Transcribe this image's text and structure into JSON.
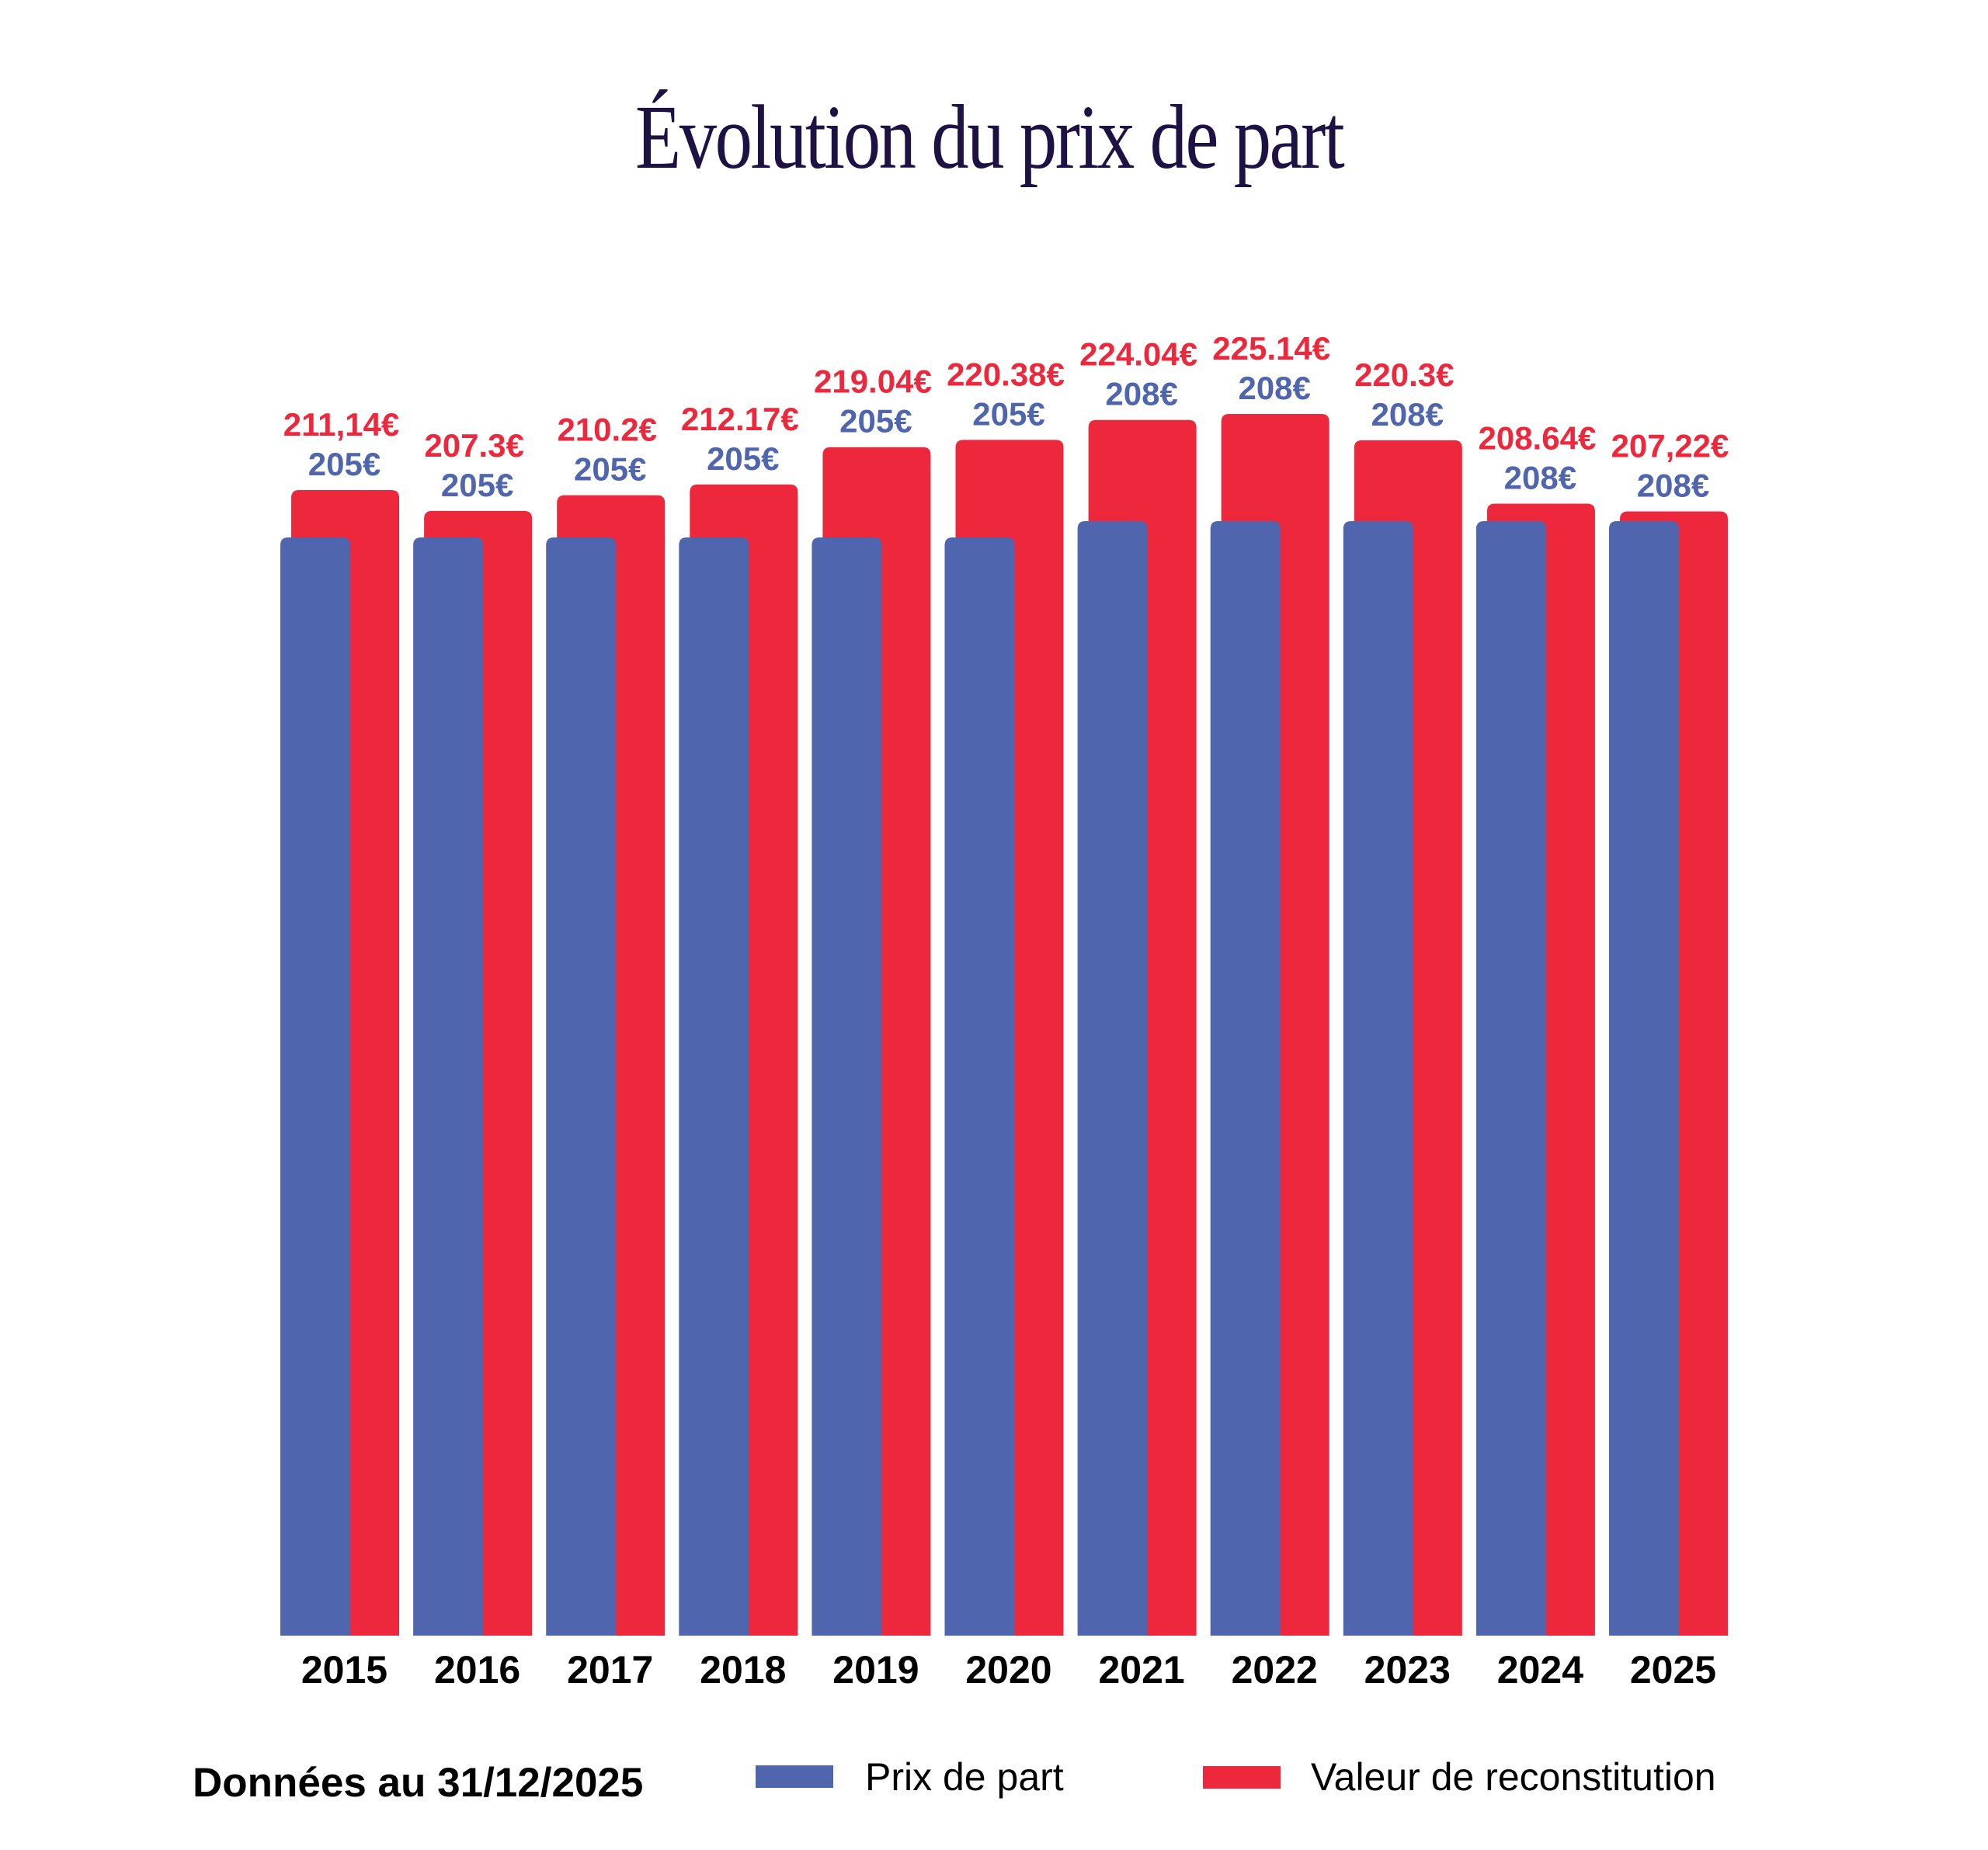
{
  "chart_data": {
    "type": "bar",
    "title": "Évolution du prix de part",
    "xlabel": "",
    "ylabel": "",
    "grid": false,
    "legend_position": "bottom",
    "categories": [
      "2015",
      "2016",
      "2017",
      "2018",
      "2019",
      "2020",
      "2021",
      "2022",
      "2023",
      "2024",
      "2025"
    ],
    "series": [
      {
        "name": "Prix de part",
        "color": "#4f66ae",
        "values": [
          205,
          205,
          205,
          205,
          205,
          205,
          208,
          208,
          208,
          208,
          208
        ],
        "labels": [
          "205€",
          "205€",
          "205€",
          "205€",
          "205€",
          "205€",
          "208€",
          "208€",
          "208€",
          "208€",
          "208€"
        ]
      },
      {
        "name": "Valeur de reconstitution",
        "color": "#ee283c",
        "values": [
          211.14,
          207.3,
          210.2,
          212.17,
          219.04,
          220.38,
          224.04,
          225.14,
          220.3,
          208.64,
          207.22
        ],
        "labels": [
          "211,14€",
          "207.3€",
          "210.2€",
          "212.17€",
          "219.04€",
          "220.38€",
          "224.04€",
          "225.14€",
          "220.3€",
          "208.64€",
          "207,22€"
        ]
      }
    ],
    "ylim": [
      0,
      230
    ]
  },
  "footer": {
    "data_note": "Données au 31/12/2025"
  },
  "legend": {
    "items": [
      {
        "label": "Prix de part",
        "color": "#4f66ae"
      },
      {
        "label": "Valeur de reconstitution",
        "color": "#ee283c"
      }
    ]
  }
}
